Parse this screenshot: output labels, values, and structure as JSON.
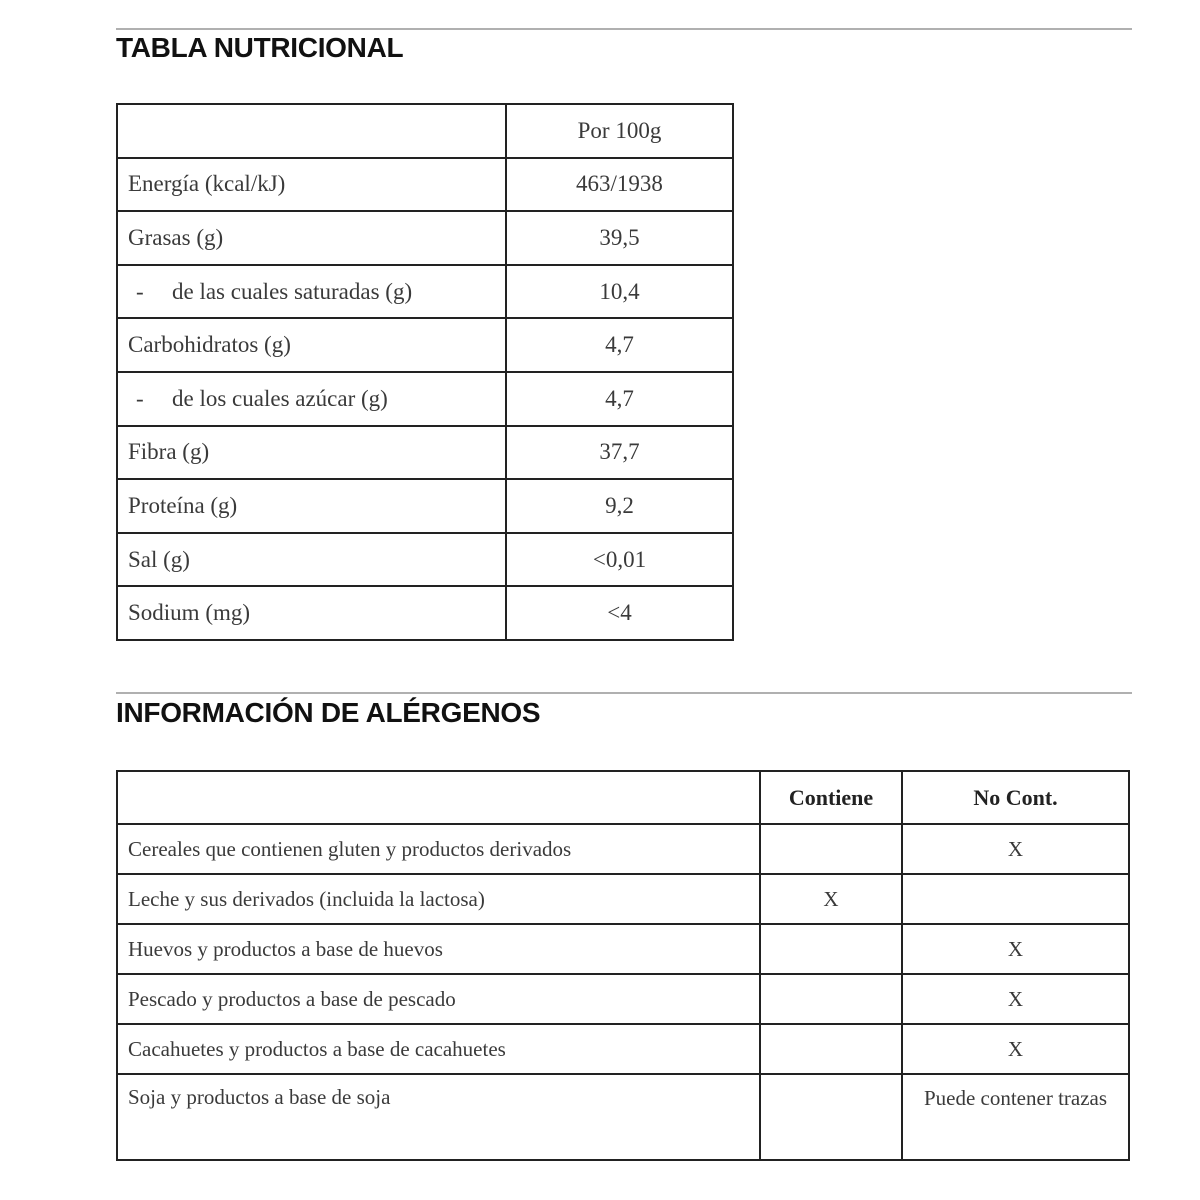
{
  "nutrition": {
    "title": "TABLA NUTRICIONAL",
    "column_header": "Por 100g",
    "rows": [
      {
        "label": "Energía (kcal/kJ)",
        "value": "463/1938",
        "sub": false
      },
      {
        "label": "Grasas (g)",
        "value": "39,5",
        "sub": false
      },
      {
        "label": "de las cuales saturadas (g)",
        "value": "10,4",
        "sub": true
      },
      {
        "label": "Carbohidratos (g)",
        "value": "4,7",
        "sub": false
      },
      {
        "label": "de los cuales azúcar (g)",
        "value": "4,7",
        "sub": true
      },
      {
        "label": "Fibra (g)",
        "value": "37,7",
        "sub": false
      },
      {
        "label": "Proteína (g)",
        "value": "9,2",
        "sub": false
      },
      {
        "label": "Sal (g)",
        "value": "<0,01",
        "sub": false
      },
      {
        "label": "Sodium (mg)",
        "value": "<4",
        "sub": false
      }
    ],
    "sub_marker": "-"
  },
  "allergens": {
    "title": "INFORMACIÓN DE ALÉRGENOS",
    "headers": [
      "Contiene",
      "No Cont."
    ],
    "rows": [
      {
        "label": "Cereales que contienen gluten y productos derivados",
        "contains": "",
        "not_contains": "X"
      },
      {
        "label": "Leche y sus derivados (incluida la lactosa)",
        "contains": "X",
        "not_contains": ""
      },
      {
        "label": "Huevos y productos a base de huevos",
        "contains": "",
        "not_contains": "X"
      },
      {
        "label": "Pescado y productos a base de pescado",
        "contains": "",
        "not_contains": "X"
      },
      {
        "label": "Cacahuetes y productos a base de cacahuetes",
        "contains": "",
        "not_contains": "X"
      },
      {
        "label": "Soja y productos a base de soja",
        "contains": "",
        "not_contains": "Puede contener trazas"
      }
    ]
  }
}
